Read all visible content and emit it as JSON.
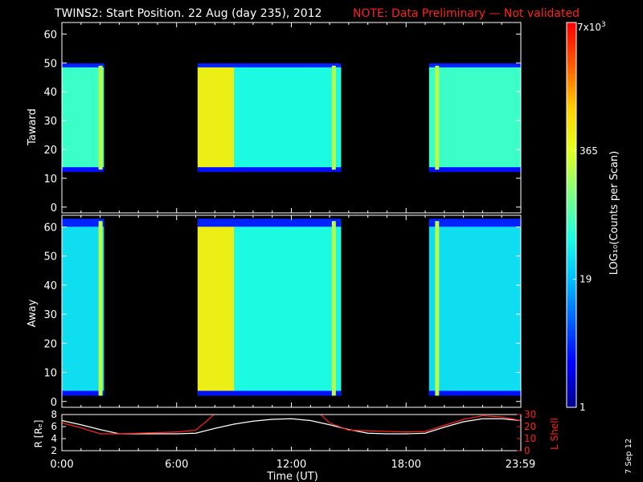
{
  "header": {
    "title": "TWINS2: Start Position. 22 Aug (day 235), 2012",
    "note": "NOTE: Data Preliminary — Not validated"
  },
  "colors": {
    "background": "#000000",
    "axis": "#ffffff",
    "note": "#ff2020",
    "r_line": "#ffffff",
    "lshell_line": "#ff2020"
  },
  "chart_data": [
    {
      "type": "heatmap",
      "panel": "toward",
      "ylabel": "Taward",
      "yticks": [
        0,
        10,
        20,
        30,
        40,
        50,
        60
      ],
      "ylim": [
        -2,
        64
      ],
      "x_unit": "hours UT",
      "segments": [
        {
          "start": 0.0,
          "end": 2.2,
          "low_edge": 13,
          "high_edge": 49,
          "level": "mid",
          "spike_hour": 2.0
        },
        {
          "start": 7.1,
          "end": 14.6,
          "low_edge": 13,
          "high_edge": 49,
          "level": "high",
          "high_until": 9.0,
          "spike_hour": 14.2
        },
        {
          "start": 19.2,
          "end": 24.0,
          "low_edge": 13,
          "high_edge": 49,
          "level": "mid",
          "spike_hour": 19.6
        }
      ]
    },
    {
      "type": "heatmap",
      "panel": "away",
      "ylabel": "Away",
      "yticks": [
        0,
        10,
        20,
        30,
        40,
        50,
        60
      ],
      "ylim": [
        -2,
        64
      ],
      "x_unit": "hours UT",
      "segments": [
        {
          "start": 0.0,
          "end": 2.2,
          "low_edge": 2,
          "high_edge": 62,
          "level": "low",
          "spike_hour": 2.0
        },
        {
          "start": 7.1,
          "end": 14.6,
          "low_edge": 2,
          "high_edge": 62,
          "level": "high",
          "high_until": 9.0,
          "spike_hour": 14.2
        },
        {
          "start": 19.2,
          "end": 24.0,
          "low_edge": 2,
          "high_edge": 62,
          "level": "low",
          "spike_hour": 19.6
        }
      ]
    },
    {
      "type": "line",
      "panel": "position",
      "ylabel_left": "R [Rₑ]",
      "ylabel_right": "L Shell",
      "left_ticks": [
        2,
        4,
        6,
        8
      ],
      "left_ylim": [
        2,
        8
      ],
      "right_ticks": [
        0,
        10,
        20,
        30
      ],
      "right_ylim": [
        0,
        30
      ],
      "series": [
        {
          "axis": "left",
          "color": "white",
          "x": [
            0,
            1,
            2,
            3,
            4,
            5,
            6,
            7,
            8,
            9,
            10,
            11,
            12,
            13,
            14,
            15,
            16,
            17,
            18,
            19,
            20,
            21,
            22,
            23,
            24
          ],
          "y": [
            7.0,
            6.3,
            5.5,
            4.8,
            4.8,
            4.8,
            4.8,
            4.9,
            5.7,
            6.4,
            6.9,
            7.2,
            7.3,
            7.0,
            6.3,
            5.5,
            4.9,
            4.8,
            4.8,
            4.9,
            5.9,
            6.8,
            7.3,
            7.3,
            7.0
          ]
        },
        {
          "axis": "right",
          "color": "red",
          "x": [
            0,
            1,
            2,
            3,
            4,
            5,
            6,
            7,
            7.6,
            8.3
          ],
          "y": [
            23,
            19,
            14,
            14,
            14.5,
            15,
            15.5,
            17,
            25,
            35
          ]
        },
        {
          "axis": "right",
          "color": "red",
          "x": [
            13.2,
            14,
            15,
            16,
            17,
            18,
            19,
            20,
            21,
            22,
            23,
            24
          ],
          "y": [
            35,
            23,
            17,
            16.5,
            16,
            15.5,
            16,
            21,
            26,
            29,
            28,
            25
          ]
        }
      ],
      "xticks": [
        "0:00",
        "6:00",
        "12:00",
        "18:00",
        "23:59"
      ],
      "xtick_hours": [
        0,
        6,
        12,
        18,
        23.98
      ],
      "xlabel": "Time (UT)"
    },
    {
      "type": "colorbar",
      "label": "LOG₁₀(Counts per Scan)",
      "ticks": [
        {
          "label": "1",
          "value": 1
        },
        {
          "label": "19",
          "value": 19
        },
        {
          "label": "365",
          "value": 365
        }
      ],
      "top_label_base": "7x10",
      "top_label_exp": "3",
      "vmax": 7000,
      "colors": [
        "#000090",
        "#0000ff",
        "#0060ff",
        "#00c0ff",
        "#20ffe0",
        "#80ff80",
        "#e0ff20",
        "#ffd000",
        "#ff6000",
        "#ff0000"
      ]
    }
  ],
  "footer": {
    "date": "7 Sep 12"
  }
}
